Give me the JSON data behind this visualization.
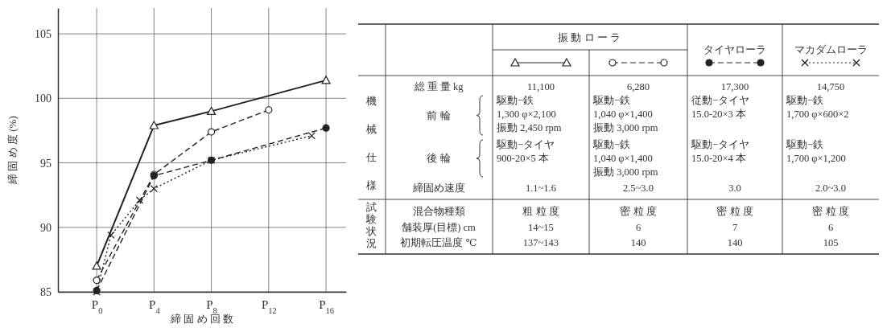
{
  "chart_data": [
    {
      "type": "line",
      "xlabel": "締 固 め 回 数",
      "ylabel": "締 固 め 度 (%)",
      "xlim": [
        -2.7,
        17.4
      ],
      "ylim": [
        85,
        107
      ],
      "xticks": [
        {
          "value": 0,
          "label": "P$_{0}$"
        },
        {
          "value": 4,
          "label": "P$_{4}$"
        },
        {
          "value": 8,
          "label": "P$_{8}$"
        },
        {
          "value": 12,
          "label": "P$_{12}$"
        },
        {
          "value": 16,
          "label": "P$_{16}$"
        }
      ],
      "yticks": [
        85,
        90,
        95,
        100,
        105
      ],
      "grid": true,
      "series": [
        {
          "color": "#222222",
          "marker": "triangle",
          "line_style": "solid",
          "x": [
            0,
            4,
            8,
            16
          ],
          "values": [
            87,
            97.9,
            99,
            101.4
          ]
        },
        {
          "color": "#222222",
          "marker": "circle",
          "line_style": "dashed",
          "x": [
            0,
            4,
            8,
            12
          ],
          "values": [
            85.9,
            94.1,
            97.4,
            99.1
          ]
        },
        {
          "color": "#222222",
          "marker": "circle",
          "line_style": "dashed",
          "x": [
            0,
            4,
            8,
            16
          ],
          "values": [
            85.1,
            94,
            95.2,
            97.7
          ]
        },
        {
          "color": "#222222",
          "marker": "cross",
          "line_style": "dotted",
          "x": [
            0,
            1,
            3,
            4,
            8,
            15
          ],
          "values": [
            85,
            89.4,
            92.1,
            93,
            95.2,
            97.1
          ]
        }
      ]
    },
    {
      "type": "other",
      "annotations": [
        "振 動 ロ ー ラ",
        "タイヤローラ",
        "マカダムローラ",
        "機械仕様",
        "試験状況",
        "総 重 量 kg",
        "前 輪",
        "後 輪",
        "締固め速度",
        "混合物種類",
        "舗装厚(目標) cm",
        "初期転圧温度 ℃",
        "11,100",
        "6,280",
        "17,300",
        "14,750",
        "駆動−鉄\n1,300 φ×2,100\n振動 2,450 rpm",
        "駆動−鉄\n1,040 φ×1,400\n振動 3,000 rpm",
        "従動−タイヤ\n15.0-20×3 本",
        "駆動−鉄\n1,700 φ×600×2",
        "駆動−タイヤ\n900-20×5 本",
        "駆動−鉄\n1,040 φ×1,400\n振動 3,000 rpm",
        "駆動−タイヤ\n15.0-20×4 本",
        "駆動−鉄\n1,700 φ×1,200",
        "1.1~1.6",
        "2.5~3.0",
        "3.0",
        "2.0~3.0",
        "粗 粒 度",
        "密 粒 度",
        "密 粒 度",
        "密 粒 度",
        "14~15",
        "6",
        "7",
        "6",
        "137~143",
        "140",
        "140",
        "105"
      ]
    }
  ]
}
